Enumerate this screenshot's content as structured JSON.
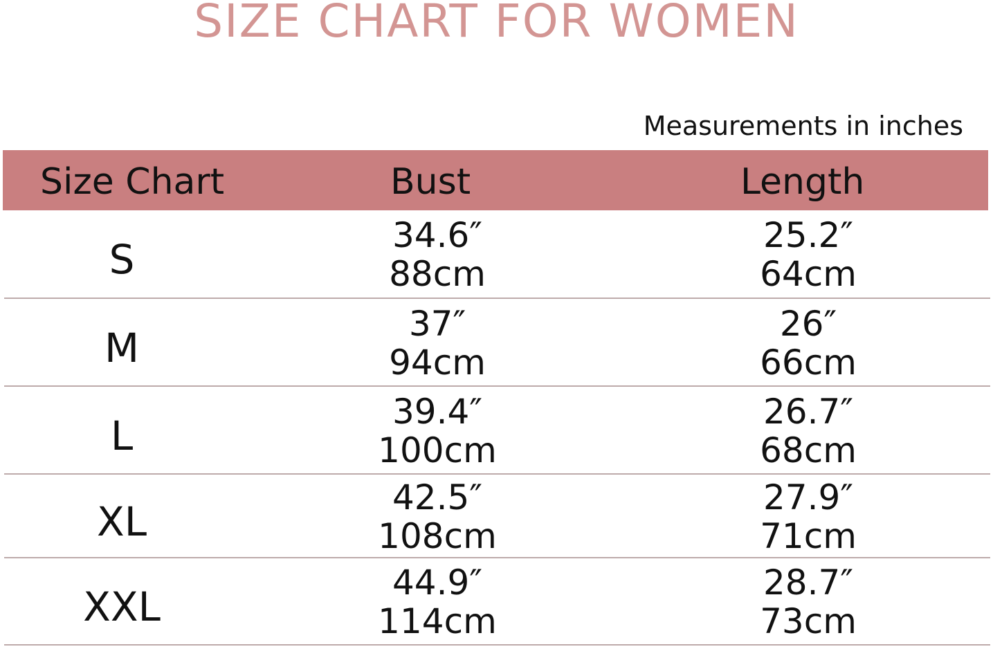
{
  "title": "SIZE CHART FOR WOMEN",
  "units_note": "Measurements in inches",
  "colors": {
    "header_bg": "#c97f80",
    "title": "#d39593",
    "row_divider": "#bdaaaa"
  },
  "chart_data": {
    "type": "table",
    "title": "SIZE CHART FOR WOMEN",
    "columns": [
      "Size Chart",
      "Bust",
      "Length"
    ],
    "rows": [
      {
        "size": "S",
        "bust_in": "34.6″",
        "bust_cm": "88cm",
        "length_in": "25.2″",
        "length_cm": "64cm"
      },
      {
        "size": "M",
        "bust_in": "37″",
        "bust_cm": "94cm",
        "length_in": "26″",
        "length_cm": "66cm"
      },
      {
        "size": "L",
        "bust_in": "39.4″",
        "bust_cm": "100cm",
        "length_in": "26.7″",
        "length_cm": "68cm"
      },
      {
        "size": "XL",
        "bust_in": "42.5″",
        "bust_cm": "108cm",
        "length_in": "27.9″",
        "length_cm": "71cm"
      },
      {
        "size": "XXL",
        "bust_in": "44.9″",
        "bust_cm": "114cm",
        "length_in": "28.7″",
        "length_cm": "73cm"
      }
    ]
  }
}
